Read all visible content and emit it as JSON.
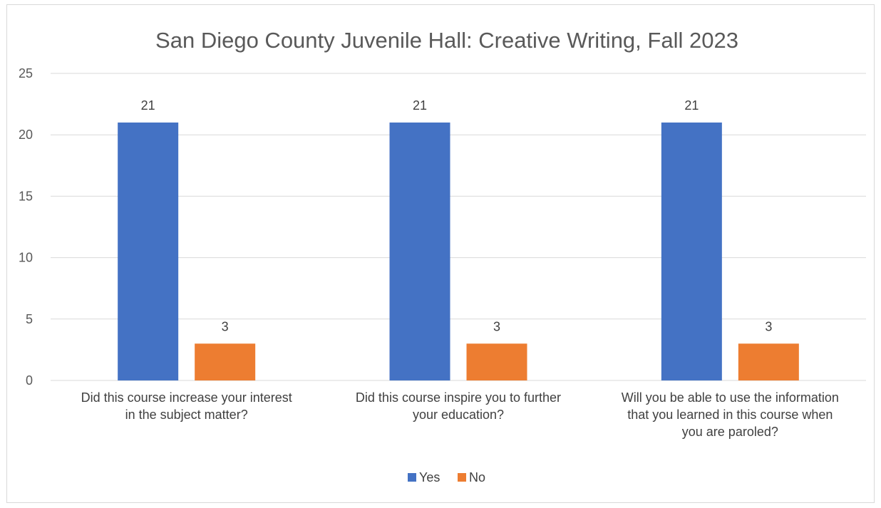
{
  "chart_data": {
    "type": "bar",
    "title": "San Diego County Juvenile Hall: Creative Writing, Fall 2023",
    "xlabel": "",
    "ylabel": "",
    "ylim": [
      0,
      25
    ],
    "yticks": [
      0,
      5,
      10,
      15,
      20,
      25
    ],
    "grid": true,
    "legend_position": "bottom",
    "categories": [
      [
        "Did this course increase your interest",
        "in the subject matter?"
      ],
      [
        "Did this course inspire you to further",
        "your education?"
      ],
      [
        "Will you be able to use the information",
        "that you learned in this course when",
        "you are paroled?"
      ]
    ],
    "series": [
      {
        "name": "Yes",
        "color": "#4472C4",
        "values": [
          21,
          21,
          21
        ]
      },
      {
        "name": "No",
        "color": "#ED7D31",
        "values": [
          3,
          3,
          3
        ]
      }
    ],
    "data_labels": true
  }
}
